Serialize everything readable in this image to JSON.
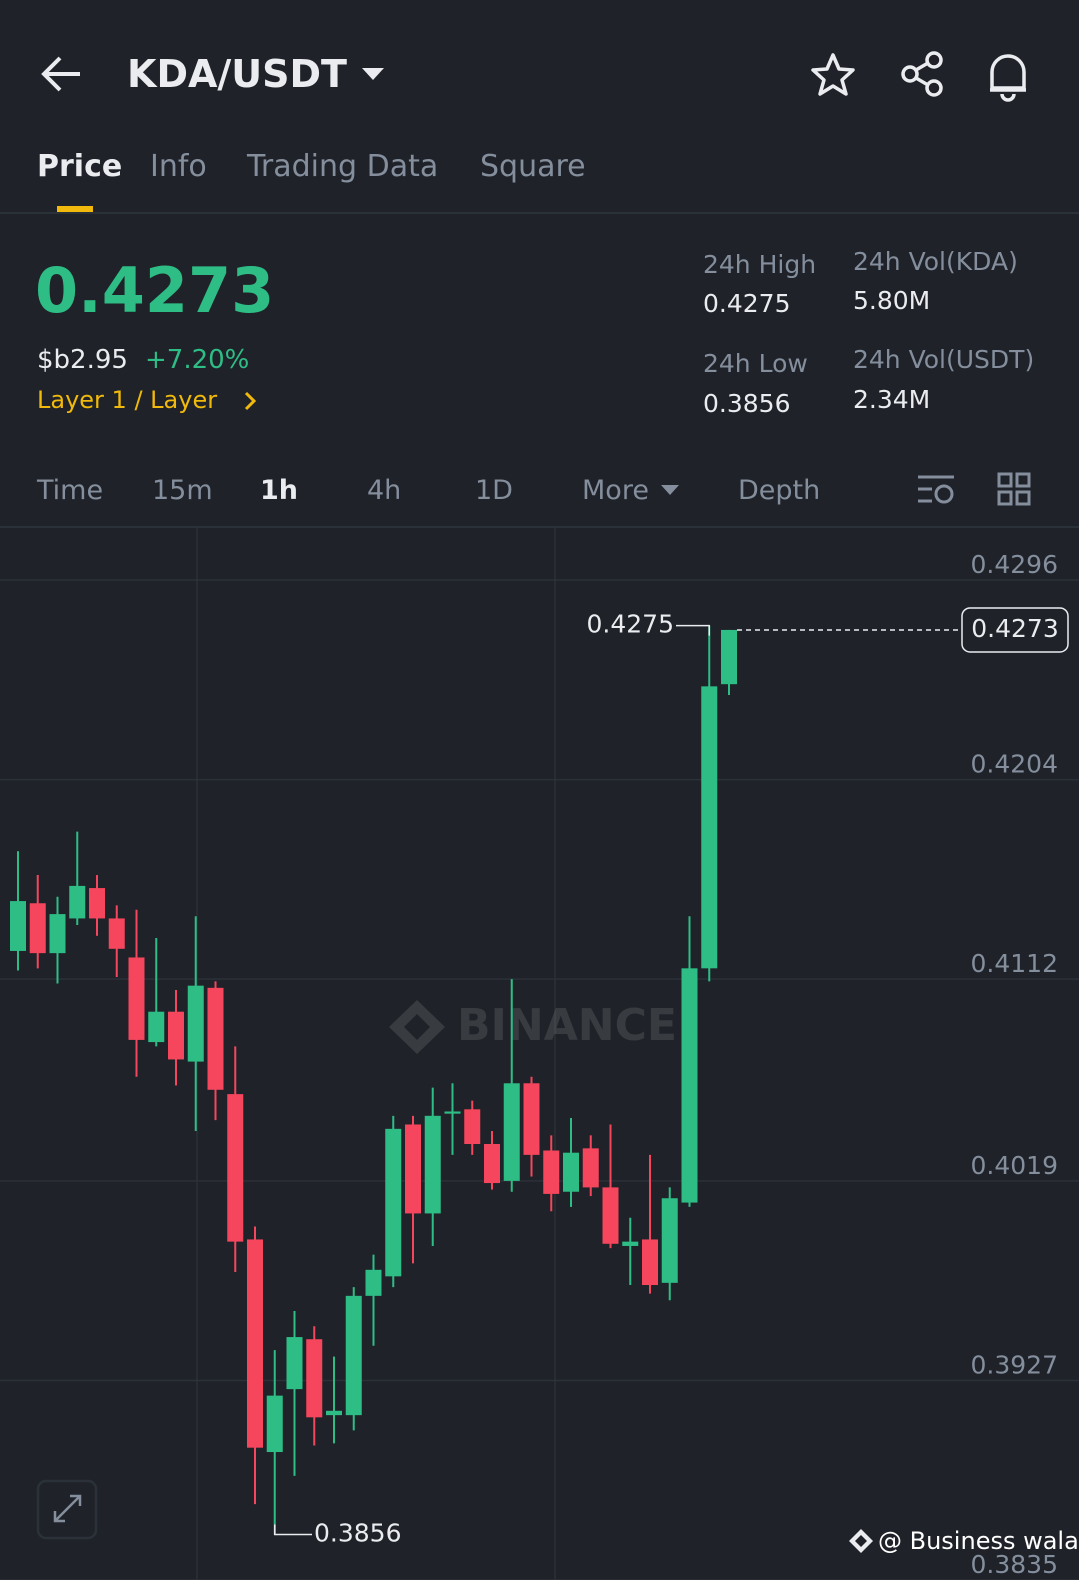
{
  "header": {
    "pair": "KDA/USDT",
    "tabs": [
      "Price",
      "Info",
      "Trading Data",
      "Square"
    ]
  },
  "ticker": {
    "price": "0.4273",
    "fiat": "$b2.95",
    "change": "+7.20%",
    "tag": "Layer 1 / Layer",
    "stats": [
      {
        "label": "24h High",
        "value": "0.4275"
      },
      {
        "label": "24h Vol(KDA)",
        "value": "5.80M"
      },
      {
        "label": "24h Low",
        "value": "0.3856"
      },
      {
        "label": "24h Vol(USDT)",
        "value": "2.34M"
      }
    ]
  },
  "intervals": [
    "Time",
    "15m",
    "1h",
    "4h",
    "1D",
    "More",
    "Depth"
  ],
  "chart_data": {
    "type": "candlestick",
    "up_color": "#2ebd85",
    "down_color": "#f6465d",
    "open": [
      0.4125,
      0.4147,
      0.4124,
      0.414,
      0.4154,
      0.414,
      0.4122,
      0.4083,
      0.4097,
      0.4074,
      0.4108,
      0.4059,
      0.3992,
      0.3894,
      0.3923,
      0.3946,
      0.3911,
      0.3911,
      0.3966,
      0.3975,
      0.4045,
      0.4004,
      0.405,
      0.4052,
      0.4036,
      0.4019,
      0.4064,
      0.4033,
      0.4014,
      0.4034,
      0.4016,
      0.3989,
      0.3992,
      0.3972,
      0.4009,
      0.4117,
      0.4248
    ],
    "high": [
      0.4171,
      0.416,
      0.415,
      0.418,
      0.416,
      0.4146,
      0.4144,
      0.4131,
      0.4107,
      0.4141,
      0.4111,
      0.4081,
      0.3998,
      0.3941,
      0.3959,
      0.3952,
      0.3938,
      0.397,
      0.3985,
      0.4049,
      0.4049,
      0.4062,
      0.4064,
      0.4056,
      0.4042,
      0.4112,
      0.4067,
      0.404,
      0.4048,
      0.404,
      0.4045,
      0.4002,
      0.4031,
      0.4016,
      0.4141,
      0.4275,
      0.4273
    ],
    "low": [
      0.4116,
      0.4117,
      0.411,
      0.4137,
      0.4132,
      0.4113,
      0.4067,
      0.4081,
      0.4063,
      0.4042,
      0.4047,
      0.3977,
      0.387,
      0.3856,
      0.3883,
      0.3897,
      0.3898,
      0.3904,
      0.3943,
      0.397,
      0.3981,
      0.3989,
      0.4031,
      0.4031,
      0.4015,
      0.4014,
      0.4021,
      0.4005,
      0.4007,
      0.4012,
      0.3988,
      0.3971,
      0.3967,
      0.3964,
      0.4007,
      0.4111,
      0.4243
    ],
    "close": [
      0.4148,
      0.4124,
      0.4142,
      0.4155,
      0.414,
      0.4126,
      0.4084,
      0.4097,
      0.4075,
      0.4109,
      0.4061,
      0.3991,
      0.3896,
      0.392,
      0.3947,
      0.391,
      0.3913,
      0.3966,
      0.3978,
      0.4043,
      0.4004,
      0.4049,
      0.4051,
      0.4036,
      0.4018,
      0.4064,
      0.4031,
      0.4013,
      0.4032,
      0.4016,
      0.399,
      0.3991,
      0.3971,
      0.4011,
      0.4117,
      0.4247,
      0.4273
    ],
    "ylim": [
      0.3835,
      0.432
    ],
    "yticks": [
      0.4296,
      0.4204,
      0.4112,
      0.4019,
      0.3927,
      0.3835
    ],
    "grid": true,
    "high_label": 0.4275,
    "low_label": 0.3856,
    "last_price": 0.4273,
    "watermark": "BINANCE",
    "credit": "@ Business wala"
  }
}
